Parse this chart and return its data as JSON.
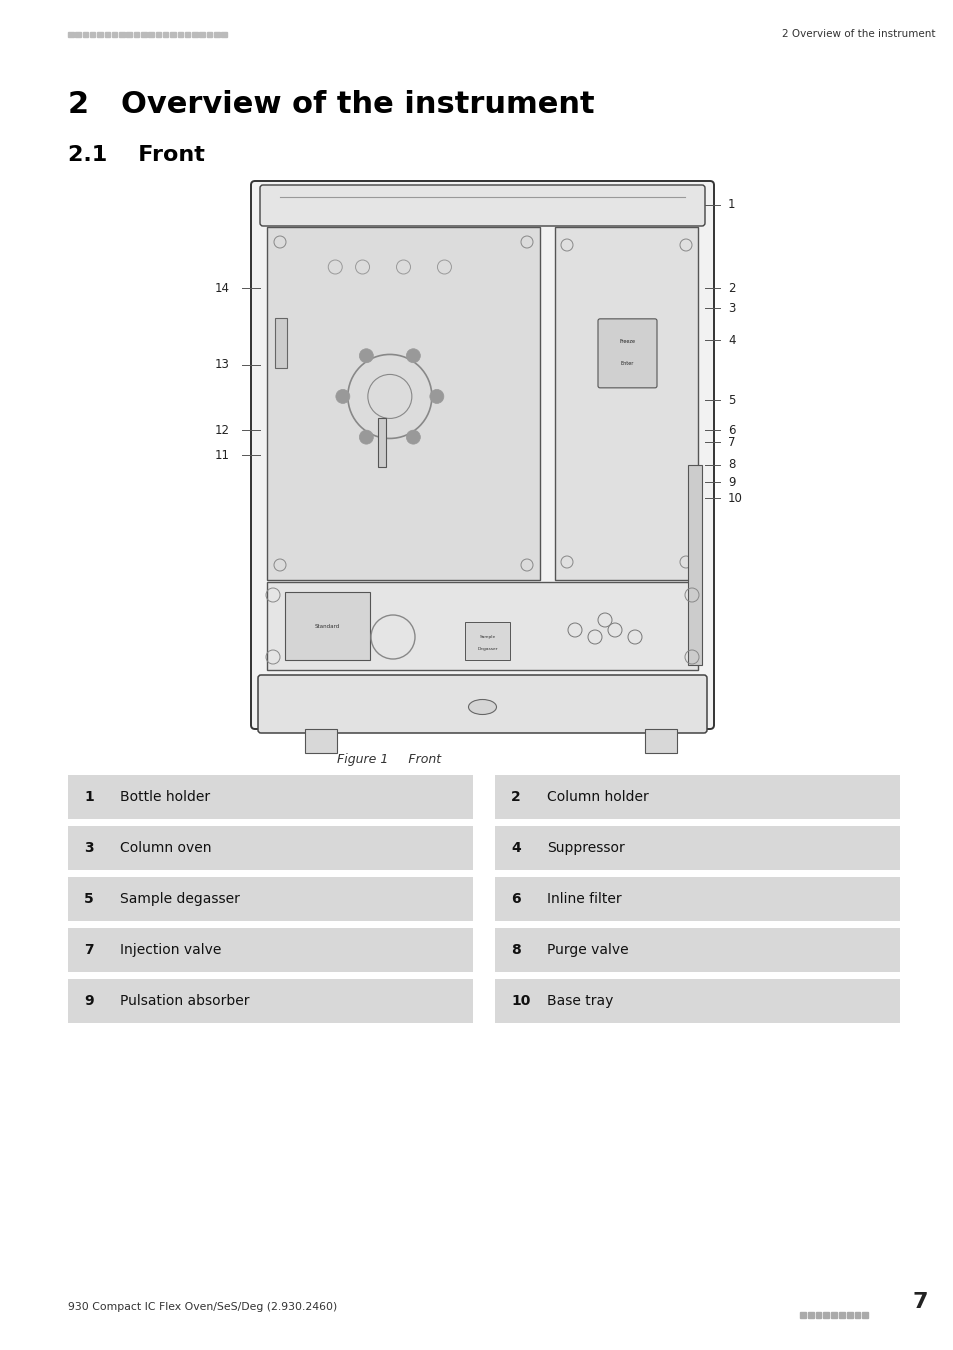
{
  "page_bg": "#ffffff",
  "header_dots_color": "#bbbbbb",
  "header_right_text": "2 Overview of the instrument",
  "title_text": "2   Overview of the instrument",
  "subtitle_text": "2.1    Front",
  "figure_caption": "Figure 1     Front",
  "footer_left": "930 Compact IC Flex Oven/SeS/Deg (2.930.2460)",
  "footer_page": "7",
  "table_bg": "#d8d8d8",
  "table_rows": [
    [
      [
        "1",
        "Bottle holder"
      ],
      [
        "2",
        "Column holder"
      ]
    ],
    [
      [
        "3",
        "Column oven"
      ],
      [
        "4",
        "Suppressor"
      ]
    ],
    [
      [
        "5",
        "Sample degasser"
      ],
      [
        "6",
        "Inline filter"
      ]
    ],
    [
      [
        "7",
        "Injection valve"
      ],
      [
        "8",
        "Purge valve"
      ]
    ],
    [
      [
        "9",
        "Pulsation absorber"
      ],
      [
        "10",
        "Base tray"
      ]
    ]
  ]
}
